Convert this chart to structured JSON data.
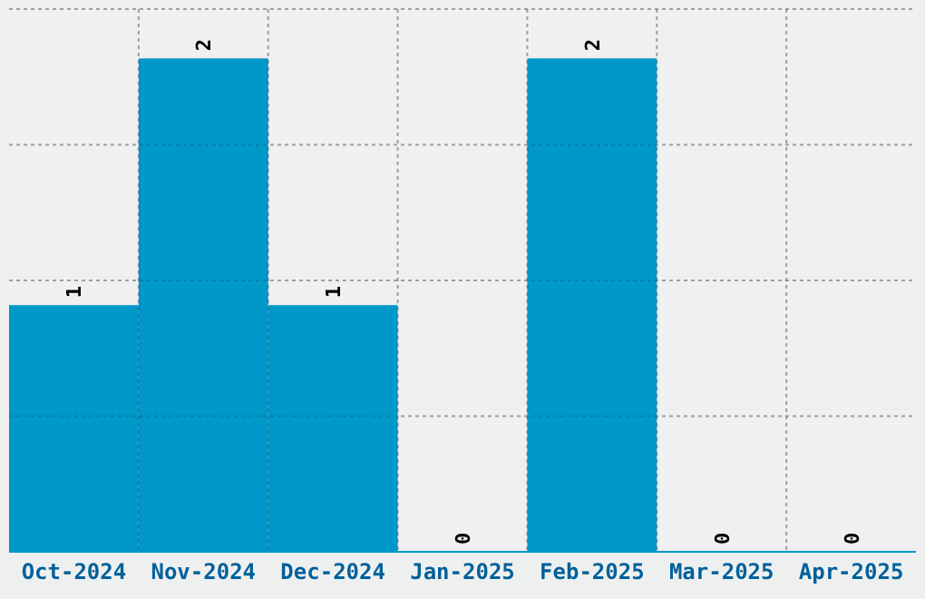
{
  "chart_data": {
    "type": "bar",
    "categories": [
      "Oct-2024",
      "Nov-2024",
      "Dec-2024",
      "Jan-2025",
      "Feb-2025",
      "Mar-2025",
      "Apr-2025"
    ],
    "values": [
      1,
      2,
      1,
      0,
      2,
      0,
      0
    ],
    "color": "#0098c8",
    "ylim": [
      0,
      2.2
    ],
    "yticks": [
      {
        "value": 0,
        "label": null
      },
      {
        "value": 0.55,
        "label": null
      },
      {
        "value": 1.1,
        "label": null
      },
      {
        "value": 1.65,
        "label": null
      },
      {
        "value": 2.2,
        "label": null
      }
    ],
    "tick_labels": "x",
    "grid": true,
    "data_labels": true
  }
}
